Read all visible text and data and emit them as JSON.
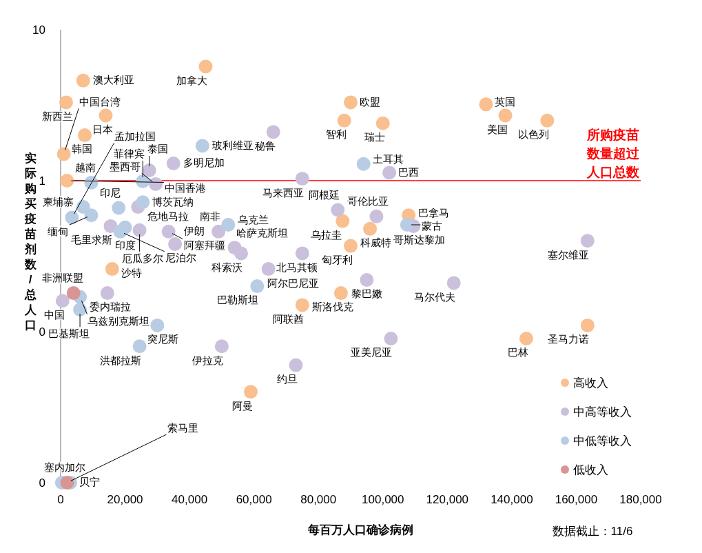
{
  "chart_data": {
    "type": "scatter",
    "xlabel": "每百万人口确诊病例",
    "ylabel": "实际购买疫苗剂数/总人口",
    "xlim": [
      0,
      180000
    ],
    "ylim": [
      0.01,
      10
    ],
    "log": "y",
    "marker": "circle",
    "legend": "bottom right",
    "xticks": [
      0,
      {
        "value": 20000,
        "label": "20,000"
      },
      {
        "value": 40000,
        "label": "40,000"
      },
      {
        "value": 60000,
        "label": "60,000"
      },
      {
        "value": 80000,
        "label": "80,000"
      },
      {
        "value": 100000,
        "label": "100,000"
      },
      {
        "value": 120000,
        "label": "120,000"
      },
      {
        "value": 140000,
        "label": "140,000"
      },
      {
        "value": 160000,
        "label": "160,000"
      },
      {
        "value": 180000,
        "label": "180,000"
      }
    ],
    "yticks": [
      {
        "value": 0.01,
        "label": "0"
      },
      {
        "value": 0.1,
        "label": "0"
      },
      1,
      10
    ],
    "ref_lines": [
      {
        "axis": "y",
        "value": 1,
        "label": "所购疫苗数量超过人口总数",
        "color": "#ff0000"
      }
    ],
    "series": [
      {
        "name": "高收入",
        "color": "#f9bf8f",
        "x": [
          45000,
          7000,
          1700,
          14000,
          7500,
          1000,
          2000,
          90000,
          88000,
          100000,
          132000,
          138000,
          151000,
          108000,
          87500,
          96000,
          90000,
          87000,
          75000,
          16000,
          59000,
          144500,
          163500
        ],
        "values": [
          5.7,
          4.6,
          3.3,
          2.7,
          2.0,
          1.5,
          1.0,
          3.3,
          2.5,
          2.4,
          3.2,
          2.7,
          2.5,
          0.59,
          0.54,
          0.48,
          0.37,
          0.18,
          0.15,
          0.26,
          0.04,
          0.09,
          0.11
        ]
      },
      {
        "name": "中高等收入",
        "color": "#cbc0dc",
        "x": [
          66000,
          35000,
          27500,
          75000,
          102000,
          29500,
          98000,
          86000,
          109500,
          163500,
          122000,
          95000,
          102500,
          73000,
          50000,
          64500,
          54000,
          56000,
          49000,
          75000,
          33500,
          35500,
          15500,
          24500,
          24000,
          14500,
          600
        ],
        "values": [
          2.1,
          1.3,
          1.17,
          1.03,
          1.13,
          0.95,
          0.58,
          0.64,
          0.5,
          0.4,
          0.21,
          0.22,
          0.09,
          0.06,
          0.08,
          0.26,
          0.36,
          0.33,
          0.46,
          0.33,
          0.46,
          0.38,
          0.5,
          0.47,
          0.67,
          0.18,
          0.16
        ]
      },
      {
        "name": "中低等收入",
        "color": "#b8cce4",
        "x": [
          44000,
          94000,
          52000,
          107500,
          20000,
          18500,
          25500,
          25500,
          9500,
          7000,
          18000,
          3500,
          9500,
          6000,
          6000,
          30000,
          24500,
          61000,
          400,
          3000
        ],
        "values": [
          1.7,
          1.29,
          0.51,
          0.51,
          0.49,
          0.46,
          0.72,
          0.99,
          0.97,
          0.67,
          0.66,
          0.57,
          0.59,
          0.17,
          0.14,
          0.11,
          0.08,
          0.2,
          0.01,
          0.01
        ]
      },
      {
        "name": "低收入",
        "color": "#d99594",
        "x": [
          4000,
          2000
        ],
        "values": [
          0.18,
          0.01
        ]
      }
    ],
    "annotations": [
      {
        "text": "加拿大",
        "x": 45000,
        "y": 5.7
      },
      {
        "text": "澳大利亚",
        "x": 7000,
        "y": 4.6
      },
      {
        "text": "新西兰",
        "x": 1700,
        "y": 3.3
      },
      {
        "text": "日本",
        "x": 14000,
        "y": 2.7
      },
      {
        "text": "韩国",
        "x": 7500,
        "y": 2.0
      },
      {
        "text": "中国台湾",
        "x": 1000,
        "y": 1.5
      },
      {
        "text": "中国香港",
        "x": 2000,
        "y": 1.0
      },
      {
        "text": "欧盟",
        "x": 90000,
        "y": 3.3
      },
      {
        "text": "智利",
        "x": 88000,
        "y": 2.5
      },
      {
        "text": "瑞士",
        "x": 100000,
        "y": 2.4
      },
      {
        "text": "英国",
        "x": 132000,
        "y": 3.2
      },
      {
        "text": "美国",
        "x": 138000,
        "y": 2.7
      },
      {
        "text": "以色列",
        "x": 151000,
        "y": 2.5
      },
      {
        "text": "巴拿马",
        "x": 108000,
        "y": 0.59
      },
      {
        "text": "乌拉圭",
        "x": 87500,
        "y": 0.54
      },
      {
        "text": "科威特",
        "x": 96000,
        "y": 0.48
      },
      {
        "text": "匈牙利",
        "x": 90000,
        "y": 0.37
      },
      {
        "text": "斯洛伐克",
        "x": 87000,
        "y": 0.18
      },
      {
        "text": "阿联酋",
        "x": 75000,
        "y": 0.15
      },
      {
        "text": "沙特",
        "x": 16000,
        "y": 0.26
      },
      {
        "text": "阿曼",
        "x": 59000,
        "y": 0.04
      },
      {
        "text": "巴林",
        "x": 144500,
        "y": 0.09
      },
      {
        "text": "圣马力诺",
        "x": 163500,
        "y": 0.11
      },
      {
        "text": "秘鲁",
        "x": 66000,
        "y": 2.1
      },
      {
        "text": "多明尼加",
        "x": 35000,
        "y": 1.3
      },
      {
        "text": "泰国",
        "x": 27500,
        "y": 1.17
      },
      {
        "text": "马来西亚",
        "x": 75000,
        "y": 1.03
      },
      {
        "text": "巴西",
        "x": 102000,
        "y": 1.13
      },
      {
        "text": "墨西哥",
        "x": 29500,
        "y": 0.95
      },
      {
        "text": "哥伦比亚",
        "x": 98000,
        "y": 0.58
      },
      {
        "text": "阿根廷",
        "x": 86000,
        "y": 0.64
      },
      {
        "text": "哥斯达黎加",
        "x": 109500,
        "y": 0.5
      },
      {
        "text": "塞尔维亚",
        "x": 163500,
        "y": 0.4
      },
      {
        "text": "马尔代夫",
        "x": 122000,
        "y": 0.21
      },
      {
        "text": "黎巴嫩",
        "x": 95000,
        "y": 0.22
      },
      {
        "text": "亚美尼亚",
        "x": 102500,
        "y": 0.09
      },
      {
        "text": "约旦",
        "x": 73000,
        "y": 0.06
      },
      {
        "text": "伊拉克",
        "x": 50000,
        "y": 0.08
      },
      {
        "text": "阿尔巴尼亚",
        "x": 64500,
        "y": 0.26
      },
      {
        "text": "哈萨克斯坦",
        "x": 54000,
        "y": 0.36
      },
      {
        "text": "科索沃",
        "x": 56000,
        "y": 0.33
      },
      {
        "text": "南非",
        "x": 49000,
        "y": 0.46
      },
      {
        "text": "北马其顿",
        "x": 75000,
        "y": 0.33
      },
      {
        "text": "阿塞拜疆",
        "x": 33500,
        "y": 0.46
      },
      {
        "text": "伊朗",
        "x": 35500,
        "y": 0.38
      },
      {
        "text": "毛里求斯",
        "x": 15500,
        "y": 0.5
      },
      {
        "text": "厄瓜多尔",
        "x": 24500,
        "y": 0.47
      },
      {
        "text": "危地马拉",
        "x": 24000,
        "y": 0.67
      },
      {
        "text": "委内瑞拉",
        "x": 14500,
        "y": 0.18
      },
      {
        "text": "中国",
        "x": 600,
        "y": 0.16
      },
      {
        "text": "玻利维亚",
        "x": 44000,
        "y": 1.7
      },
      {
        "text": "土耳其",
        "x": 94000,
        "y": 1.29
      },
      {
        "text": "乌克兰",
        "x": 52000,
        "y": 0.51
      },
      {
        "text": "蒙古",
        "x": 107500,
        "y": 0.51
      },
      {
        "text": "印度",
        "x": 20000,
        "y": 0.49
      },
      {
        "text": "尼泊尔",
        "x": 18500,
        "y": 0.46
      },
      {
        "text": "博茨瓦纳",
        "x": 25500,
        "y": 0.72
      },
      {
        "text": "菲律宾",
        "x": 25500,
        "y": 0.99
      },
      {
        "text": "越南",
        "x": 9500,
        "y": 0.97
      },
      {
        "text": "柬埔寨",
        "x": 7000,
        "y": 0.67
      },
      {
        "text": "印尼",
        "x": 18000,
        "y": 0.66
      },
      {
        "text": "孟加拉国",
        "x": 3500,
        "y": 0.57
      },
      {
        "text": "缅甸",
        "x": 9500,
        "y": 0.59
      },
      {
        "text": "乌兹别克斯坦",
        "x": 6000,
        "y": 0.17
      },
      {
        "text": "巴基斯坦",
        "x": 6000,
        "y": 0.14
      },
      {
        "text": "突尼斯",
        "x": 30000,
        "y": 0.11
      },
      {
        "text": "洪都拉斯",
        "x": 24500,
        "y": 0.08
      },
      {
        "text": "巴勒斯坦",
        "x": 61000,
        "y": 0.2
      },
      {
        "text": "塞内加尔",
        "x": 400,
        "y": 0.01
      },
      {
        "text": "贝宁",
        "x": 3000,
        "y": 0.01
      },
      {
        "text": "非洲联盟",
        "x": 4000,
        "y": 0.18
      },
      {
        "text": "索马里",
        "x": 2000,
        "y": 0.01
      },
      "数据截止：11/6"
    ]
  }
}
